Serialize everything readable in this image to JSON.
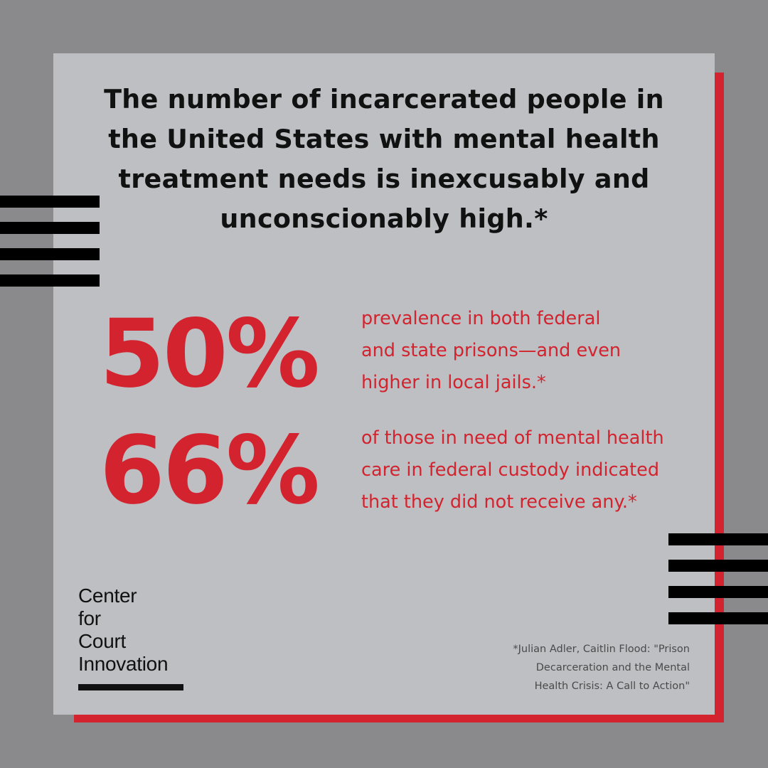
{
  "headline": {
    "lines": [
      "The number of incarcerated people in",
      "the United States with mental health",
      "treatment needs is inexcusably and",
      "unconscionably high.*"
    ]
  },
  "stats": [
    {
      "value": "50%",
      "description_lines": [
        "prevalence in both federal",
        "and state prisons—and even",
        "higher in local jails.*"
      ]
    },
    {
      "value": "66%",
      "description_lines": [
        "of those in need of mental health",
        "care in federal custody indicated",
        "that they did not receive any.*"
      ]
    }
  ],
  "logo": {
    "lines": [
      "Center",
      "for",
      "Court",
      "Innovation"
    ]
  },
  "citation": {
    "lines": [
      "*Julian Adler, Caitlin Flood: \"Prison",
      "Decarceration and the Mental",
      "Health Crisis: A Call to Action\""
    ]
  },
  "colors": {
    "background": "#8a8a8d",
    "card": "#bdbfc3",
    "accent_red": "#d2232e",
    "text_dark": "#111111",
    "stripes": "#000000"
  }
}
